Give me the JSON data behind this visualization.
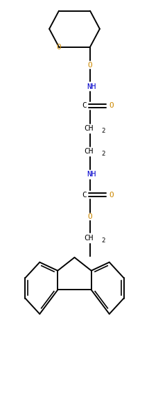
{
  "background_color": "#ffffff",
  "line_color": "#000000",
  "O_color": "#cc8800",
  "N_color": "#0000cc",
  "figsize": [
    2.15,
    5.89
  ],
  "dpi": 100,
  "xlim": [
    0,
    6
  ],
  "ylim": [
    0,
    17
  ]
}
